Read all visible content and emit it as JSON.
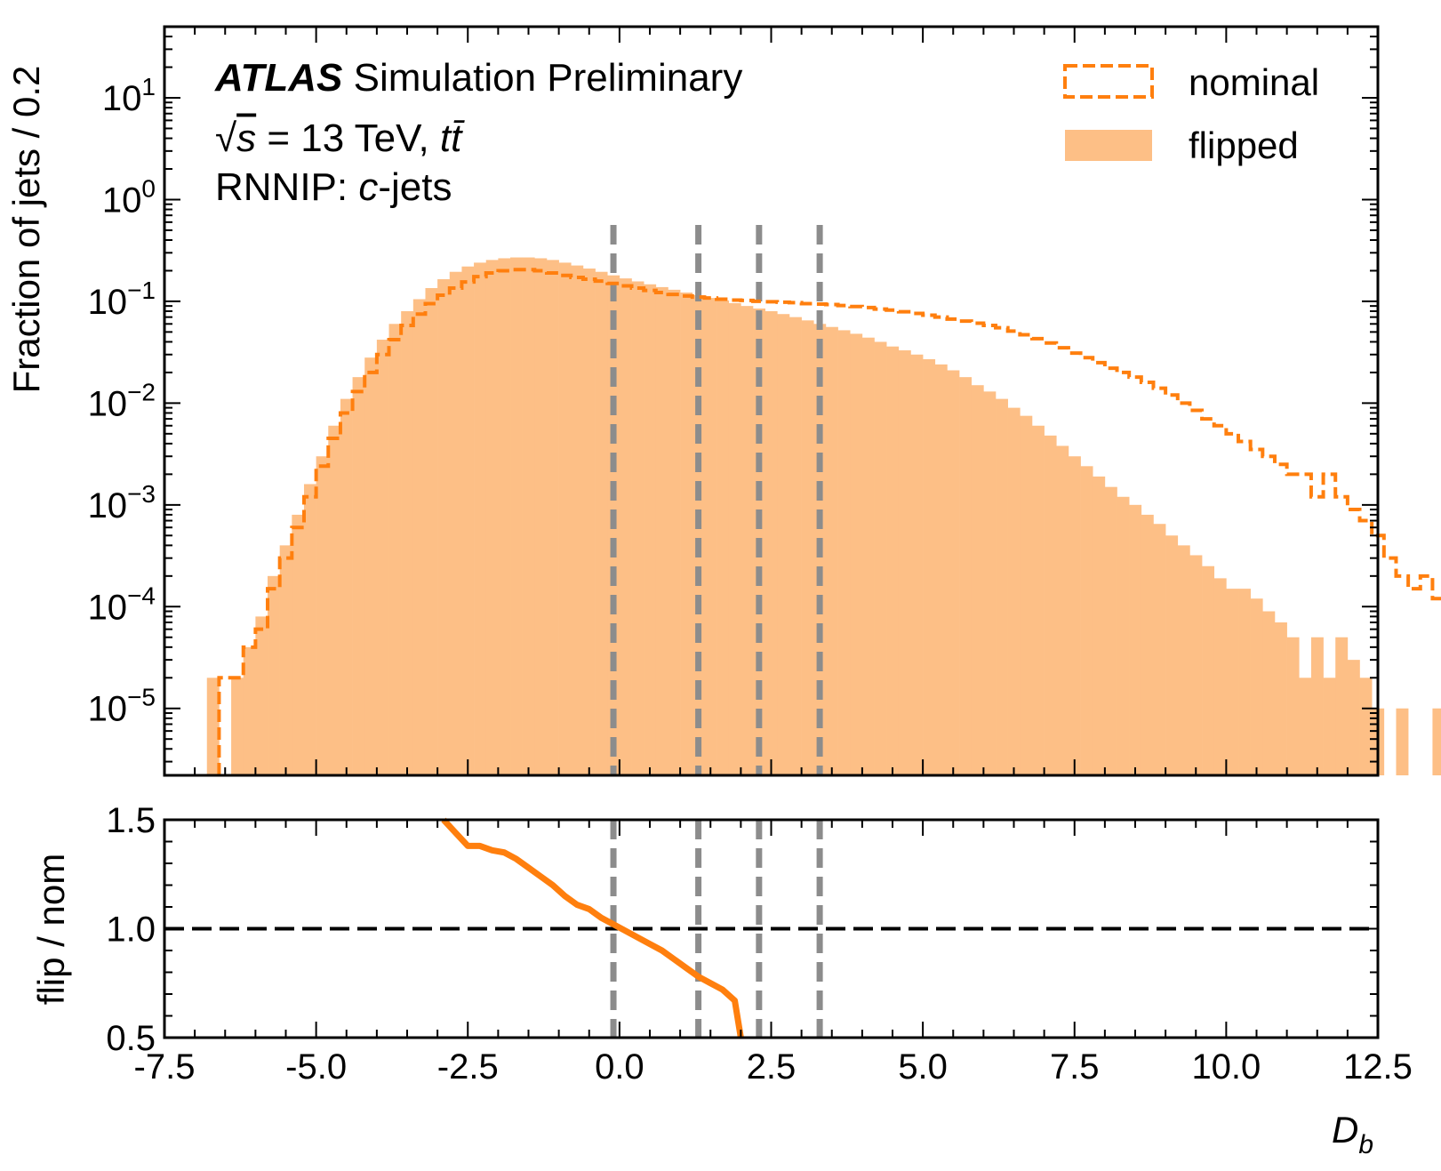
{
  "chart_data": [
    {
      "type": "bar",
      "panel": "main",
      "title": "",
      "annotations": {
        "experiment": "ATLAS",
        "experiment_suffix": "Simulation Preliminary",
        "energy_prefix": "√",
        "energy_sym": "s",
        "energy_rest": " = 13 TeV, ",
        "process_t1": "t",
        "process_t2": "t̄",
        "tagger_prefix": "RNNIP: ",
        "tagger_flavour": "c",
        "tagger_suffix": "-jets"
      },
      "ylabel": "Fraction of jets / 0.2",
      "xlabel": "",
      "yscale": "log",
      "ylim": [
        2.2e-06,
        50
      ],
      "xlim": [
        -7.5,
        12.5
      ],
      "bin_width": 0.2,
      "ytick_labels": [
        {
          "value": 10,
          "base": "10",
          "exp": "1"
        },
        {
          "value": 1,
          "base": "10",
          "exp": "0"
        },
        {
          "value": 0.1,
          "base": "10",
          "exp": "−1"
        },
        {
          "value": 0.01,
          "base": "10",
          "exp": "−2"
        },
        {
          "value": 0.001,
          "base": "10",
          "exp": "−3"
        },
        {
          "value": 0.0001,
          "base": "10",
          "exp": "−4"
        },
        {
          "value": 1e-05,
          "base": "10",
          "exp": "−5"
        }
      ],
      "legend": {
        "position": "upper-right",
        "entries": [
          "nominal",
          "flipped"
        ]
      },
      "working_points": [
        -0.1,
        1.3,
        2.3,
        3.3
      ],
      "series": [
        {
          "name": "nominal",
          "style": "dashed-step",
          "color": "#ff7f0e",
          "x_start": -6.6,
          "values": [
            2e-05,
            2e-05,
            4e-05,
            6e-05,
            0.00015,
            0.0003,
            0.0006,
            0.0012,
            0.0024,
            0.0045,
            0.008,
            0.013,
            0.02,
            0.03,
            0.042,
            0.058,
            0.075,
            0.095,
            0.115,
            0.135,
            0.155,
            0.175,
            0.19,
            0.2,
            0.205,
            0.205,
            0.2,
            0.19,
            0.18,
            0.172,
            0.165,
            0.158,
            0.15,
            0.142,
            0.135,
            0.128,
            0.122,
            0.117,
            0.113,
            0.11,
            0.108,
            0.105,
            0.103,
            0.102,
            0.1,
            0.099,
            0.098,
            0.097,
            0.095,
            0.094,
            0.093,
            0.091,
            0.089,
            0.087,
            0.084,
            0.082,
            0.079,
            0.076,
            0.073,
            0.07,
            0.067,
            0.064,
            0.061,
            0.058,
            0.055,
            0.051,
            0.047,
            0.043,
            0.039,
            0.035,
            0.031,
            0.028,
            0.025,
            0.022,
            0.02,
            0.018,
            0.016,
            0.014,
            0.012,
            0.01,
            0.0085,
            0.007,
            0.006,
            0.005,
            0.0042,
            0.0035,
            0.003,
            0.0025,
            0.002,
            0.002,
            0.0012,
            0.002,
            0.0012,
            0.0009,
            0.0007,
            0.0005,
            0.0003,
            0.0002,
            0.00015,
            0.0002,
            0.00012,
            6e-05,
            9e-05,
            6e-05,
            4e-05,
            2e-05,
            1e-05,
            2.2e-06,
            2.2e-06,
            2e-05,
            2.2e-06,
            2.2e-06,
            2.2e-06,
            2.2e-06,
            2.2e-06,
            2.2e-06,
            2.2e-06,
            2.2e-06,
            2.2e-06,
            2.2e-06,
            2.2e-06,
            2.2e-06,
            2.2e-06,
            2.2e-06,
            2.2e-06,
            2.2e-06,
            2.2e-06,
            2.2e-06,
            2.2e-06,
            2.2e-06,
            2.2e-06,
            2.2e-06,
            2.2e-06
          ]
        },
        {
          "name": "flipped",
          "style": "filled-bar",
          "color": "#fdbf86",
          "x_start": -6.8,
          "values": [
            2e-05,
            0,
            2e-05,
            4e-05,
            8e-05,
            0.0002,
            0.0004,
            0.0008,
            0.0016,
            0.003,
            0.006,
            0.011,
            0.018,
            0.028,
            0.042,
            0.06,
            0.08,
            0.105,
            0.135,
            0.165,
            0.195,
            0.22,
            0.24,
            0.255,
            0.265,
            0.27,
            0.27,
            0.265,
            0.255,
            0.24,
            0.225,
            0.21,
            0.195,
            0.18,
            0.168,
            0.157,
            0.147,
            0.138,
            0.13,
            0.122,
            0.115,
            0.108,
            0.102,
            0.096,
            0.09,
            0.085,
            0.08,
            0.075,
            0.07,
            0.065,
            0.06,
            0.056,
            0.052,
            0.048,
            0.044,
            0.04,
            0.036,
            0.033,
            0.03,
            0.027,
            0.024,
            0.021,
            0.018,
            0.015,
            0.013,
            0.011,
            0.009,
            0.0075,
            0.006,
            0.0048,
            0.0038,
            0.003,
            0.0024,
            0.0019,
            0.0015,
            0.0012,
            0.001,
            0.0008,
            0.00065,
            0.0005,
            0.0004,
            0.00032,
            0.00025,
            0.00019,
            0.00015,
            0.00015,
            0.00012,
            9e-05,
            7e-05,
            5e-05,
            2e-05,
            5e-05,
            2e-05,
            5e-05,
            3e-05,
            2e-05,
            1e-05,
            0,
            1e-05,
            0,
            0,
            1e-05,
            0
          ]
        }
      ]
    },
    {
      "type": "line",
      "panel": "ratio",
      "ylabel": "flip / nom",
      "xlabel_base": "D",
      "xlabel_sub": "b",
      "ylim": [
        0.5,
        1.5
      ],
      "xlim": [
        -7.5,
        12.5
      ],
      "reference_line": 1.0,
      "ytick_labels": [
        "0.5",
        "1.0",
        "1.5"
      ],
      "ytick_values": [
        0.5,
        1.0,
        1.5
      ],
      "xtick_labels": [
        "-7.5",
        "-5.0",
        "-2.5",
        "0.0",
        "2.5",
        "5.0",
        "7.5",
        "10.0",
        "12.5"
      ],
      "xtick_values": [
        -7.5,
        -5.0,
        -2.5,
        0.0,
        2.5,
        5.0,
        7.5,
        10.0,
        12.5
      ],
      "series": [
        {
          "name": "",
          "color": "#ff7f0e",
          "x": [
            -2.9,
            -2.7,
            -2.5,
            -2.3,
            -2.1,
            -1.9,
            -1.7,
            -1.5,
            -1.3,
            -1.1,
            -0.9,
            -0.7,
            -0.5,
            -0.3,
            -0.1,
            0.1,
            0.3,
            0.5,
            0.7,
            0.9,
            1.1,
            1.3,
            1.5,
            1.7,
            1.9,
            2.0
          ],
          "y": [
            1.5,
            1.44,
            1.38,
            1.38,
            1.36,
            1.35,
            1.32,
            1.28,
            1.24,
            1.2,
            1.15,
            1.11,
            1.09,
            1.05,
            1.02,
            0.99,
            0.96,
            0.93,
            0.9,
            0.86,
            0.82,
            0.78,
            0.75,
            0.72,
            0.67,
            0.5
          ]
        }
      ]
    }
  ]
}
